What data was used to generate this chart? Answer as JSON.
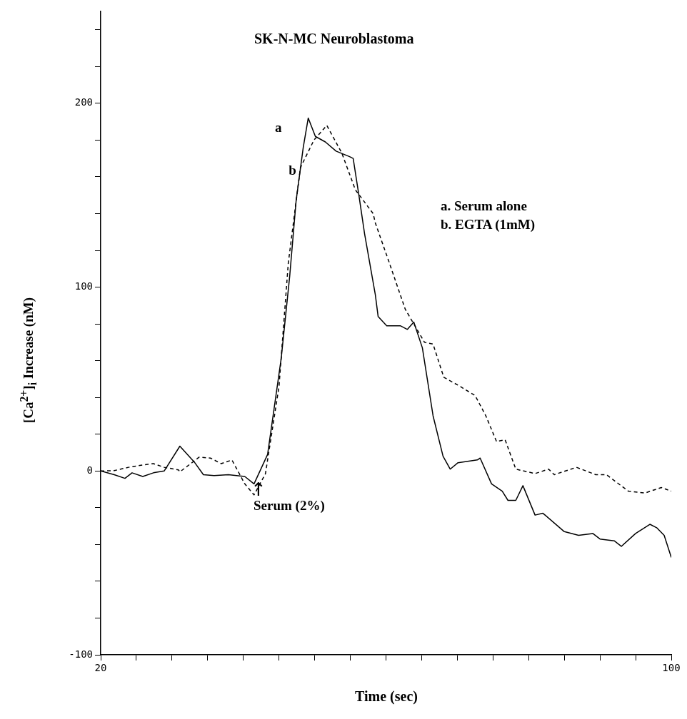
{
  "chart_data": {
    "type": "line",
    "title": "SK-N-MC Neuroblastoma",
    "xlabel": "Time (sec)",
    "ylabel": "[Ca$^{2+}$]$_{i}$ Increase (nM)",
    "xlim": [
      20,
      100
    ],
    "xticks": [
      20,
      {
        "value": 25,
        "label": null
      },
      {
        "value": 30,
        "label": null
      },
      {
        "value": 35,
        "label": null
      },
      {
        "value": 40,
        "label": null
      },
      {
        "value": 45,
        "label": null
      },
      {
        "value": 50,
        "label": null
      },
      {
        "value": 55,
        "label": null
      },
      {
        "value": 60,
        "label": null
      },
      {
        "value": 65,
        "label": null
      },
      {
        "value": 70,
        "label": null
      },
      {
        "value": 75,
        "label": null
      },
      {
        "value": 80,
        "label": null
      },
      {
        "value": 85,
        "label": null
      },
      {
        "value": 90,
        "label": null
      },
      {
        "value": 95,
        "label": null
      },
      100
    ],
    "ylim": [
      -100,
      250
    ],
    "yticks": [
      -100,
      {
        "value": -80,
        "label": null
      },
      {
        "value": -60,
        "label": null
      },
      {
        "value": -40,
        "label": null
      },
      {
        "value": -20,
        "label": null
      },
      0,
      {
        "value": 20,
        "label": null
      },
      {
        "value": 40,
        "label": null
      },
      {
        "value": 60,
        "label": null
      },
      {
        "value": 80,
        "label": null
      },
      100,
      {
        "value": 120,
        "label": null
      },
      {
        "value": 140,
        "label": null
      },
      {
        "value": 160,
        "label": null
      },
      {
        "value": 180,
        "label": null
      },
      200,
      {
        "value": 220,
        "label": null
      },
      {
        "value": 240,
        "label": null
      }
    ],
    "grid": false,
    "legend": false,
    "marker": "none",
    "series": [
      {
        "name": "a",
        "color": "#000000",
        "line_style": "solid",
        "x": [
          20,
          21.9,
          23.4,
          24.4,
          25.9,
          27.4,
          28.9,
          31.1,
          33.1,
          34.4,
          35.9,
          37.9,
          40.2,
          41.5,
          43.4,
          45.3,
          46.5,
          47.4,
          48.4,
          49.1,
          50.1,
          51.5,
          53.0,
          54.9,
          55.4,
          56.2,
          57.0,
          58.5,
          58.9,
          60.1,
          62.0,
          63.0,
          63.9,
          65.1,
          66.6,
          68.0,
          69.0,
          70.1,
          72.8,
          73.2,
          74.8,
          76.3,
          77.1,
          78.2,
          79.2,
          80.9,
          82.0,
          85.0,
          87.0,
          89.0,
          90.0,
          92.0,
          93.0,
          95.0,
          97.0,
          98.0,
          99.0,
          100
        ],
        "values": [
          0,
          -2,
          -4,
          -1,
          -3,
          -1,
          0,
          13.5,
          5,
          -2,
          -2.5,
          -2,
          -3,
          -7,
          9,
          61,
          106,
          147,
          176,
          192,
          182,
          179,
          174,
          171,
          170,
          150,
          129,
          96,
          84,
          79,
          79,
          77,
          81,
          67,
          30,
          8,
          1,
          4.5,
          6,
          7,
          -7,
          -11,
          -16,
          -16,
          -8,
          -24,
          -23,
          -33,
          -35,
          -34,
          -37,
          -38,
          -41,
          -34,
          -29,
          -31,
          -35,
          -47
        ]
      },
      {
        "name": "b",
        "color": "#000000",
        "line_style": "dashed",
        "x": [
          20,
          21.9,
          23.9,
          25.9,
          27.4,
          28.9,
          30.9,
          31.1,
          33.8,
          35.4,
          36.9,
          38.4,
          40.2,
          41.5,
          43.1,
          45.0,
          46.3,
          48.0,
          49.9,
          51.7,
          53.8,
          55.7,
          58.2,
          58.5,
          60.4,
          62.7,
          65.4,
          66.6,
          68.1,
          70.4,
          72.5,
          74.0,
          75.5,
          76.7,
          78.2,
          80.9,
          82.8,
          83.6,
          86.7,
          89.4,
          90.9,
          94.0,
          96.3,
          98.6,
          100
        ],
        "values": [
          0,
          0.2,
          2,
          3.3,
          4,
          2,
          0.6,
          -0.5,
          7.5,
          7,
          4,
          6,
          -7,
          -13,
          -1.5,
          46,
          113,
          165,
          180,
          188,
          173,
          153,
          140,
          135,
          114,
          88,
          70,
          69,
          51,
          46,
          41,
          30,
          16,
          17,
          1,
          -1.4,
          1,
          -2,
          2,
          -2,
          -2,
          -11,
          -12,
          -9,
          -11
        ]
      }
    ],
    "annotations": [
      "↑\nSerum (2%)",
      "a. Serum alone",
      "b. EGTA (1mM)"
    ]
  }
}
